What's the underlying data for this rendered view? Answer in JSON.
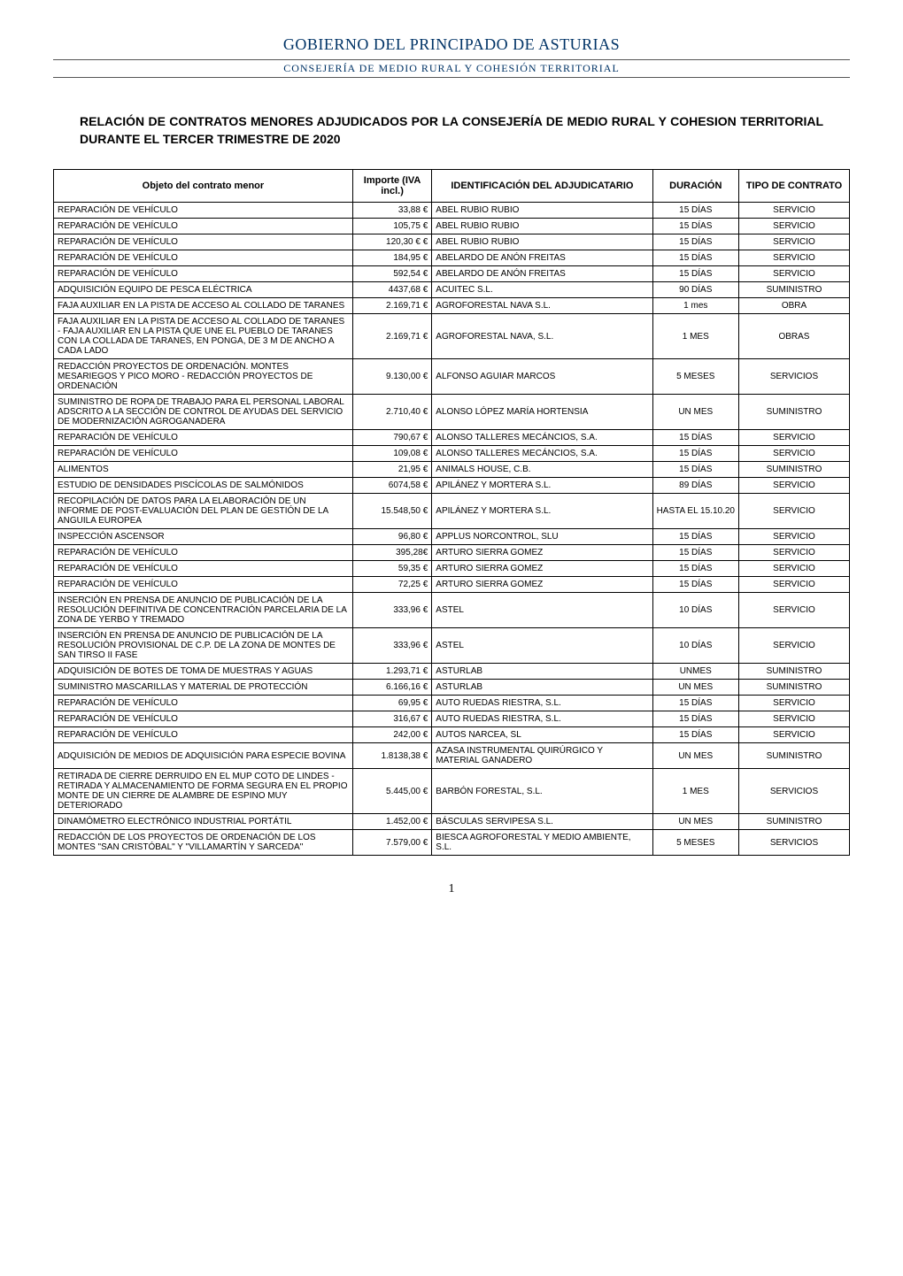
{
  "header": {
    "org_line": "GOBIERNO DEL PRINCIPADO DE ASTURIAS",
    "dept_line": "CONSEJERÍA DE MEDIO RURAL Y COHESIÓN TERRITORIAL"
  },
  "title": "RELACIÓN DE CONTRATOS MENORES ADJUDICADOS POR LA CONSEJERÍA DE MEDIO RURAL Y COHESION TERRITORIAL DURANTE EL TERCER TRIMESTRE DE 2020",
  "table": {
    "columns": [
      "Objeto del contrato menor",
      "Importe (IVA incl.)",
      "IDENTIFICACIÓN DEL ADJUDICATARIO",
      "DURACIÓN",
      "TIPO DE CONTRATO"
    ],
    "col_widths_pct": [
      38,
      10,
      28,
      10,
      14
    ],
    "header_fontsize": 11,
    "cell_fontsize": 10,
    "border_color": "#000000",
    "rows": [
      [
        "REPARACIÓN DE VEHÍCULO",
        "33,88 €",
        "ABEL RUBIO RUBIO",
        "15 DÍAS",
        "SERVICIO"
      ],
      [
        "REPARACIÓN DE VEHÍCULO",
        "105,75 €",
        "ABEL RUBIO RUBIO",
        "15 DÍAS",
        "SERVICIO"
      ],
      [
        "REPARACIÓN DE VEHÍCULO",
        "120,30 € €",
        "ABEL RUBIO RUBIO",
        "15 DÍAS",
        "SERVICIO"
      ],
      [
        "REPARACIÓN DE VEHÍCULO",
        "184,95 €",
        "ABELARDO DE ANÓN FREITAS",
        "15 DÍAS",
        "SERVICIO"
      ],
      [
        "REPARACIÓN DE VEHÍCULO",
        "592,54 €",
        "ABELARDO DE ANÓN FREITAS",
        "15 DÍAS",
        "SERVICIO"
      ],
      [
        "ADQUISICIÓN EQUIPO DE PESCA ELÉCTRICA",
        "4437,68 €",
        "ACUITEC S.L.",
        "90 DÍAS",
        "SUMINISTRO"
      ],
      [
        "FAJA AUXILIAR EN LA PISTA DE ACCESO AL COLLADO DE TARANES",
        "2.169,71 €",
        "AGROFORESTAL NAVA S.L.",
        "1 mes",
        "OBRA"
      ],
      [
        "FAJA AUXILIAR EN LA PISTA DE ACCESO AL COLLADO DE TARANES  -  FAJA AUXILIAR EN LA PISTA QUE UNE EL PUEBLO DE TARANES CON LA COLLADA DE TARANES, EN PONGA, DE 3 M DE ANCHO A CADA LADO",
        "2.169,71 €",
        "AGROFORESTAL NAVA, S.L.",
        "1 MES",
        "OBRAS"
      ],
      [
        "REDACCIÓN PROYECTOS DE ORDENACIÓN. MONTES MESARIEGOS Y PICO MORO  -  REDACCIÓN PROYECTOS DE ORDENACIÓN",
        "9.130,00 €",
        "ALFONSO AGUIAR MARCOS",
        "5 MESES",
        "SERVICIOS"
      ],
      [
        "SUMINISTRO DE ROPA DE TRABAJO PARA EL PERSONAL LABORAL ADSCRITO A LA SECCIÓN DE CONTROL DE AYUDAS DEL SERVICIO DE MODERNIZACIÓN AGROGANADERA",
        "2.710,40 €",
        "ALONSO LÓPEZ MARÍA HORTENSIA",
        "UN MES",
        "SUMINISTRO"
      ],
      [
        "REPARACIÓN DE VEHÍCULO",
        "790,67 €",
        "ALONSO TALLERES MECÁNCIOS, S.A.",
        "15 DÍAS",
        "SERVICIO"
      ],
      [
        "REPARACIÓN DE VEHÍCULO",
        "109,08 €",
        "ALONSO TALLERES MECÁNCIOS, S.A.",
        "15 DÍAS",
        "SERVICIO"
      ],
      [
        "ALIMENTOS",
        "21,95 €",
        "ANIMALS HOUSE, C.B.",
        "15 DÍAS",
        "SUMINISTRO"
      ],
      [
        "ESTUDIO DE DENSIDADES PISCÍCOLAS DE SALMÓNIDOS",
        "6074,58 €",
        "APILÁNEZ Y MORTERA S.L.",
        "89 DÍAS",
        "SERVICIO"
      ],
      [
        "RECOPILACIÓN DE DATOS PARA LA ELABORACIÓN DE UN INFORME DE POST-EVALUACIÓN DEL PLAN DE GESTIÓN DE LA ANGUILA EUROPEA",
        "15.548,50 €",
        "APILÁNEZ Y MORTERA S.L.",
        "HASTA EL 15.10.20",
        "SERVICIO"
      ],
      [
        "INSPECCIÓN ASCENSOR",
        "96,80 €",
        "APPLUS NORCONTROL, SLU",
        "15 DÍAS",
        "SERVICIO"
      ],
      [
        "REPARACIÓN DE VEHÍCULO",
        "395,28€",
        "ARTURO SIERRA GOMEZ",
        "15 DÍAS",
        "SERVICIO"
      ],
      [
        "REPARACIÓN DE VEHÍCULO",
        "59,35 €",
        "ARTURO SIERRA GOMEZ",
        "15 DÍAS",
        "SERVICIO"
      ],
      [
        "REPARACIÓN DE VEHÍCULO",
        "72,25 €",
        "ARTURO SIERRA GOMEZ",
        "15 DÍAS",
        "SERVICIO"
      ],
      [
        "INSERCIÓN EN PRENSA DE ANUNCIO DE PUBLICACIÓN DE LA RESOLUCIÓN DEFINITIVA DE CONCENTRACIÓN PARCELARIA DE LA ZONA DE YERBO Y TREMADO",
        "333,96 €",
        "ASTEL",
        "10 DÍAS",
        "SERVICIO"
      ],
      [
        "INSERCIÓN EN PRENSA DE ANUNCIO DE PUBLICACIÓN DE LA RESOLUCIÓN PROVISIONAL DE C.P. DE LA ZONA DE MONTES DE SAN TIRSO II FASE",
        "333,96 €",
        "ASTEL",
        "10 DÍAS",
        "SERVICIO"
      ],
      [
        "ADQUISICIÓN DE BOTES DE TOMA DE MUESTRAS Y AGUAS",
        "1.293,71 €",
        "ASTURLAB",
        "UNMES",
        "SUMINISTRO"
      ],
      [
        "SUMINISTRO MASCARILLAS Y MATERIAL DE PROTECCIÓN",
        "6.166,16 €",
        "ASTURLAB",
        "UN MES",
        "SUMINISTRO"
      ],
      [
        "REPARACIÓN DE VEHÍCULO",
        "69,95 €",
        "AUTO RUEDAS RIESTRA, S.L.",
        "15 DÍAS",
        "SERVICIO"
      ],
      [
        "REPARACIÓN DE VEHÍCULO",
        "316,67 €",
        "AUTO RUEDAS RIESTRA, S.L.",
        "15 DÍAS",
        "SERVICIO"
      ],
      [
        "REPARACIÓN DE VEHÍCULO",
        "242,00 €",
        "AUTOS NARCEA, SL",
        "15 DÍAS",
        "SERVICIO"
      ],
      [
        "ADQUISICIÓN DE MEDIOS DE ADQUISICIÓN PARA ESPECIE BOVINA",
        "1.8138,38 €",
        "AZASA INSTRUMENTAL QUIRÚRGICO Y MATERIAL GANADERO",
        "UN MES",
        "SUMINISTRO"
      ],
      [
        "RETIRADA DE CIERRE DERRUIDO EN EL MUP COTO DE LINDES  -  RETIRADA Y ALMACENAMIENTO DE FORMA SEGURA EN EL PROPIO MONTE DE UN CIERRE DE ALAMBRE DE ESPINO MUY DETERIORADO",
        "5.445,00 €",
        "BARBÓN FORESTAL, S.L.",
        "1 MES",
        "SERVICIOS"
      ],
      [
        "DINAMÓMETRO ELECTRÓNICO INDUSTRIAL PORTÁTIL",
        "1.452,00 €",
        "BÁSCULAS SERVIPESA S.L.",
        "UN MES",
        "SUMINISTRO"
      ],
      [
        "REDACCIÓN DE LOS PROYECTOS DE ORDENACIÓN DE LOS MONTES \"SAN CRISTÓBAL\" Y \"VILLAMARTÍN Y SARCEDA\"",
        "7.579,00 €",
        "BIESCA AGROFORESTAL Y MEDIO AMBIENTE, S.L.",
        "5 MESES",
        "SERVICIOS"
      ]
    ]
  },
  "page_number": "1",
  "colors": {
    "header_text": "#003366",
    "rule": "#555555",
    "body_text": "#000000",
    "watermark": "#e8eef5",
    "background": "#ffffff",
    "table_border": "#000000"
  },
  "typography": {
    "header_font": "Georgia, serif",
    "body_font": "Verdana, sans-serif",
    "title_fontsize": 14,
    "header_org_fontsize": 18,
    "header_dept_fontsize": 12
  }
}
